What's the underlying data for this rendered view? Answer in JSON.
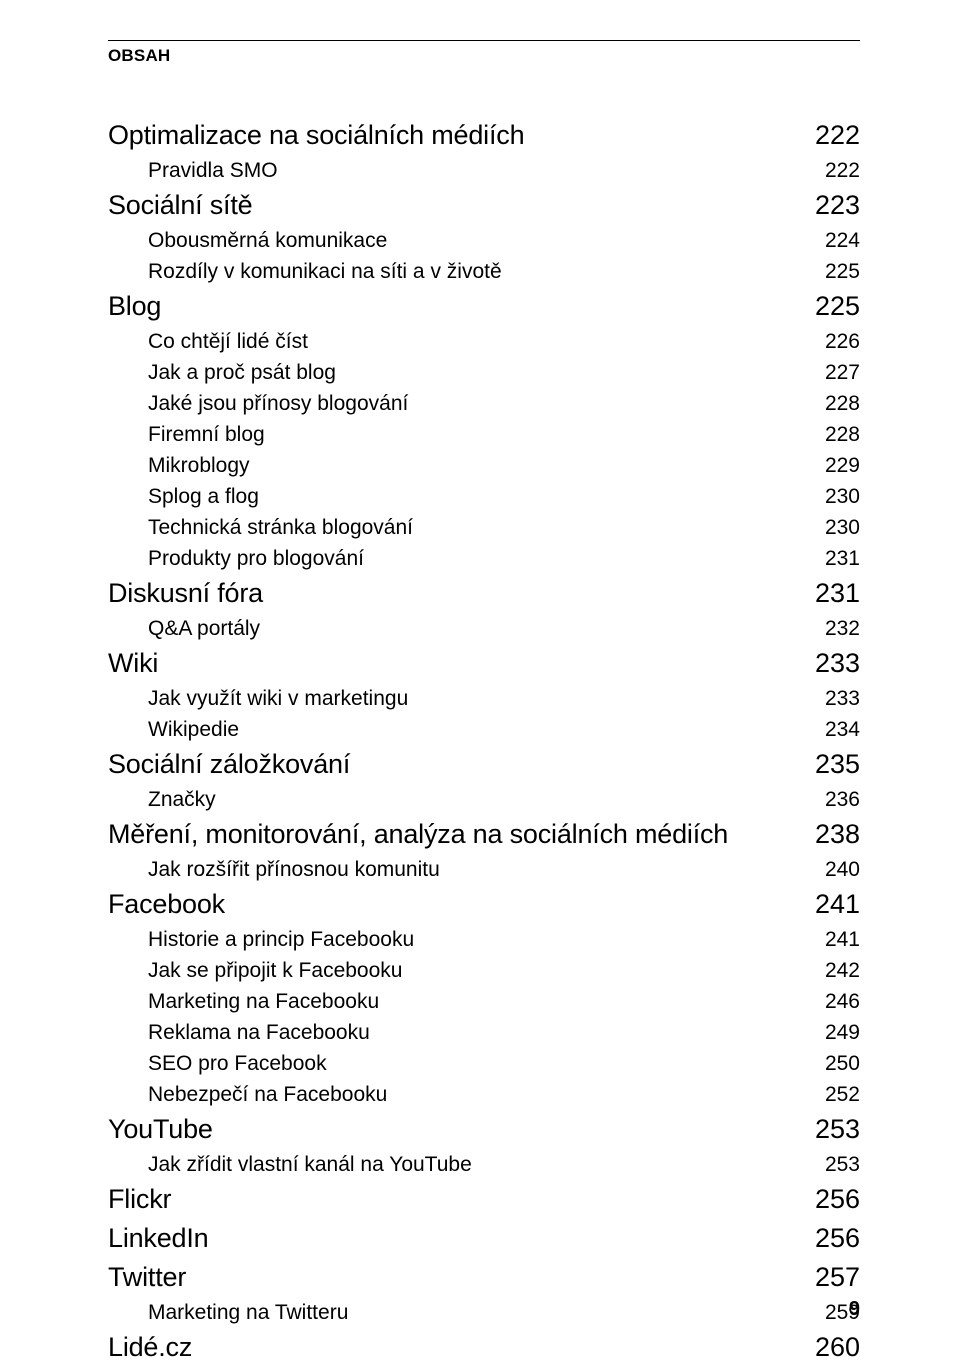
{
  "header": "OBSAH",
  "pageNumber": "9",
  "toc": [
    {
      "label": "Optimalizace na sociálních médiích",
      "page": "222",
      "level": 0
    },
    {
      "label": "Pravidla SMO",
      "page": "222",
      "level": 1
    },
    {
      "label": "Sociální sítě",
      "page": "223",
      "level": 0
    },
    {
      "label": "Obousměrná komunikace",
      "page": "224",
      "level": 1
    },
    {
      "label": "Rozdíly v komunikaci na síti a v životě",
      "page": "225",
      "level": 1
    },
    {
      "label": "Blog",
      "page": "225",
      "level": 0
    },
    {
      "label": "Co chtějí lidé číst",
      "page": "226",
      "level": 1
    },
    {
      "label": "Jak a proč psát blog",
      "page": "227",
      "level": 1
    },
    {
      "label": "Jaké jsou přínosy blogování",
      "page": "228",
      "level": 1
    },
    {
      "label": "Firemní blog",
      "page": "228",
      "level": 1
    },
    {
      "label": "Mikroblogy",
      "page": "229",
      "level": 1
    },
    {
      "label": "Splog a flog",
      "page": "230",
      "level": 1
    },
    {
      "label": "Technická stránka blogování",
      "page": "230",
      "level": 1
    },
    {
      "label": "Produkty pro blogování",
      "page": "231",
      "level": 1
    },
    {
      "label": "Diskusní fóra",
      "page": "231",
      "level": 0
    },
    {
      "label": "Q&A portály",
      "page": "232",
      "level": 1
    },
    {
      "label": "Wiki",
      "page": "233",
      "level": 0
    },
    {
      "label": "Jak využít wiki v marketingu",
      "page": "233",
      "level": 1
    },
    {
      "label": "Wikipedie",
      "page": "234",
      "level": 1
    },
    {
      "label": "Sociální záložkování",
      "page": "235",
      "level": 0
    },
    {
      "label": "Značky",
      "page": "236",
      "level": 1
    },
    {
      "label": "Měření, monitorování, analýza na sociálních médiích",
      "page": "238",
      "level": 0
    },
    {
      "label": "Jak rozšířit přínosnou komunitu",
      "page": "240",
      "level": 1
    },
    {
      "label": "Facebook",
      "page": "241",
      "level": 0
    },
    {
      "label": "Historie a princip Facebooku",
      "page": "241",
      "level": 1
    },
    {
      "label": "Jak se připojit k Facebooku",
      "page": "242",
      "level": 1
    },
    {
      "label": "Marketing na Facebooku",
      "page": "246",
      "level": 1
    },
    {
      "label": "Reklama na Facebooku",
      "page": "249",
      "level": 1
    },
    {
      "label": "SEO pro Facebook",
      "page": "250",
      "level": 1
    },
    {
      "label": "Nebezpečí na Facebooku",
      "page": "252",
      "level": 1
    },
    {
      "label": "YouTube",
      "page": "253",
      "level": 0
    },
    {
      "label": "Jak zřídit vlastní kanál na YouTube",
      "page": "253",
      "level": 1
    },
    {
      "label": "Flickr",
      "page": "256",
      "level": 0
    },
    {
      "label": "LinkedIn",
      "page": "256",
      "level": 0
    },
    {
      "label": "Twitter",
      "page": "257",
      "level": 0
    },
    {
      "label": "Marketing na Twitteru",
      "page": "259",
      "level": 1
    },
    {
      "label": "Lidé.cz",
      "page": "260",
      "level": 0
    }
  ]
}
